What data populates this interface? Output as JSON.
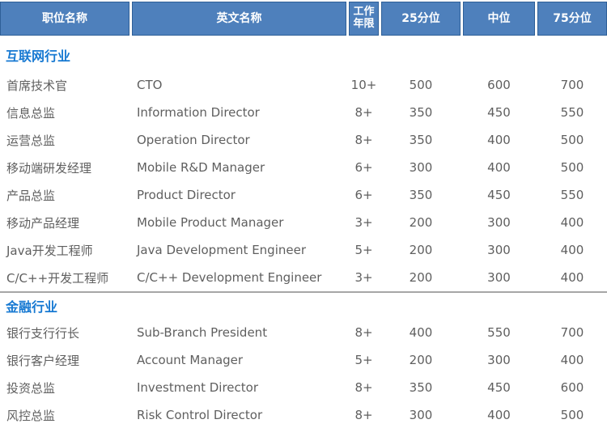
{
  "table": {
    "columns": [
      {
        "label": "职位名称"
      },
      {
        "label": "英文名称"
      },
      {
        "label": "工作年限"
      },
      {
        "label": "25分位"
      },
      {
        "label": "中位"
      },
      {
        "label": "75分位"
      }
    ],
    "sections": [
      {
        "title": "互联网行业",
        "rows": [
          [
            "首席技术官",
            "CTO",
            "10+",
            "500",
            "600",
            "700"
          ],
          [
            "信息总监",
            "Information Director",
            "8+",
            "350",
            "450",
            "550"
          ],
          [
            "运营总监",
            "Operation Director",
            "8+",
            "350",
            "400",
            "500"
          ],
          [
            "移动端研发经理",
            "Mobile R&D Manager",
            "6+",
            "300",
            "400",
            "500"
          ],
          [
            "产品总监",
            "Product Director",
            "6+",
            "350",
            "450",
            "550"
          ],
          [
            "移动产品经理",
            "Mobile Product Manager",
            "3+",
            "200",
            "300",
            "400"
          ],
          [
            "Java开发工程师",
            "Java Development Engineer",
            "5+",
            "200",
            "300",
            "400"
          ],
          [
            "C/C++开发工程师",
            "C/C++ Development Engineer",
            "3+",
            "200",
            "300",
            "400"
          ]
        ]
      },
      {
        "title": "金融行业",
        "rows": [
          [
            "银行支行行长",
            "Sub-Branch President",
            "8+",
            "400",
            "550",
            "700"
          ],
          [
            "银行客户经理",
            "Account Manager",
            "5+",
            "200",
            "300",
            "400"
          ],
          [
            "投资总监",
            "Investment Director",
            "8+",
            "350",
            "450",
            "600"
          ],
          [
            "风控总监",
            "Risk Control Director",
            "8+",
            "300",
            "400",
            "500"
          ]
        ]
      }
    ]
  },
  "colors": {
    "header_bg": "#4e80bc",
    "header_border": "#2e5f97",
    "section_title": "#1779d2",
    "body_text": "#5f5f5f",
    "divider": "#a6a6a6"
  }
}
